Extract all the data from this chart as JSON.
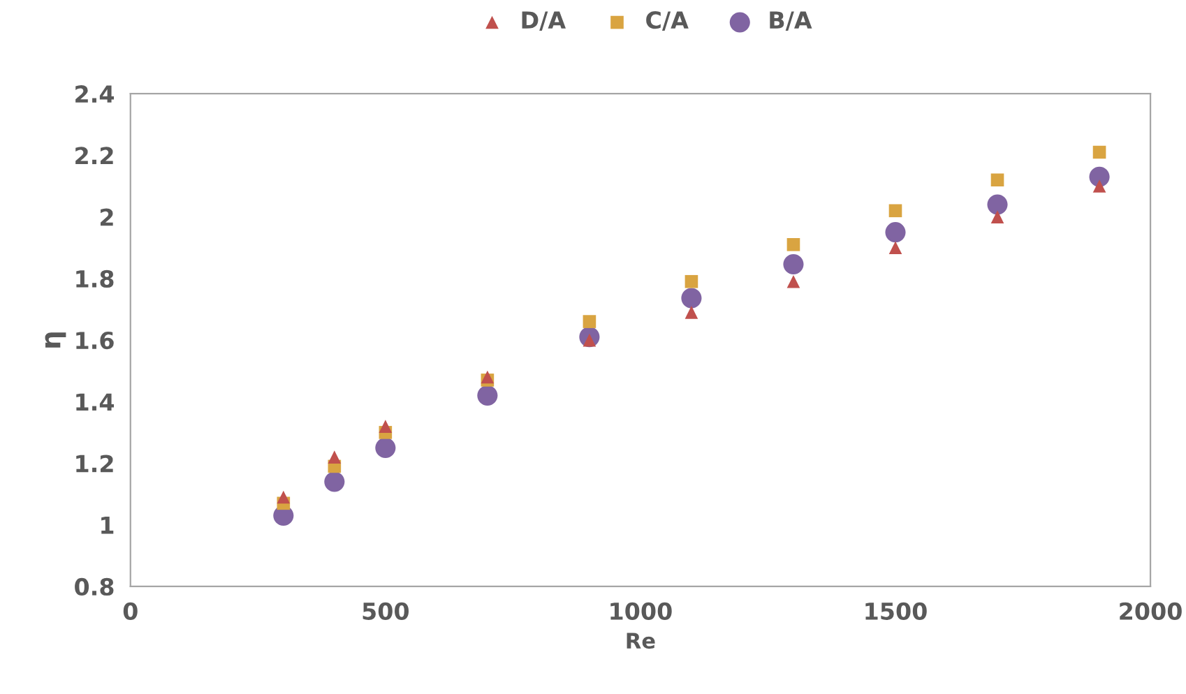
{
  "chart_data": {
    "type": "scatter",
    "xlabel": "Re",
    "ylabel": "η",
    "x": [
      300,
      400,
      500,
      700,
      900,
      1100,
      1300,
      1500,
      1700,
      1900
    ],
    "series": [
      {
        "name": "D/A",
        "color": "#c0504d",
        "marker": "triangle",
        "values": [
          1.09,
          1.22,
          1.32,
          1.48,
          1.6,
          1.69,
          1.79,
          1.9,
          2.0,
          2.1
        ]
      },
      {
        "name": "C/A",
        "color": "#d9a441",
        "marker": "square",
        "values": [
          1.07,
          1.19,
          1.3,
          1.47,
          1.66,
          1.79,
          1.91,
          2.02,
          2.12,
          2.21
        ]
      },
      {
        "name": "B/A",
        "color": "#8064a2",
        "marker": "circle",
        "values": [
          1.03,
          1.14,
          1.25,
          1.42,
          1.61,
          1.736,
          1.846,
          1.95,
          2.04,
          2.13
        ]
      }
    ],
    "xlim": [
      0,
      2000
    ],
    "xticks": [
      0,
      500,
      1000,
      1500,
      2000
    ],
    "ylim": [
      0.8,
      2.4
    ],
    "yticks": [
      0.8,
      1,
      1.2,
      1.4,
      1.6,
      1.8,
      2,
      2.2,
      2.4
    ],
    "grid": false,
    "legend": "top"
  }
}
